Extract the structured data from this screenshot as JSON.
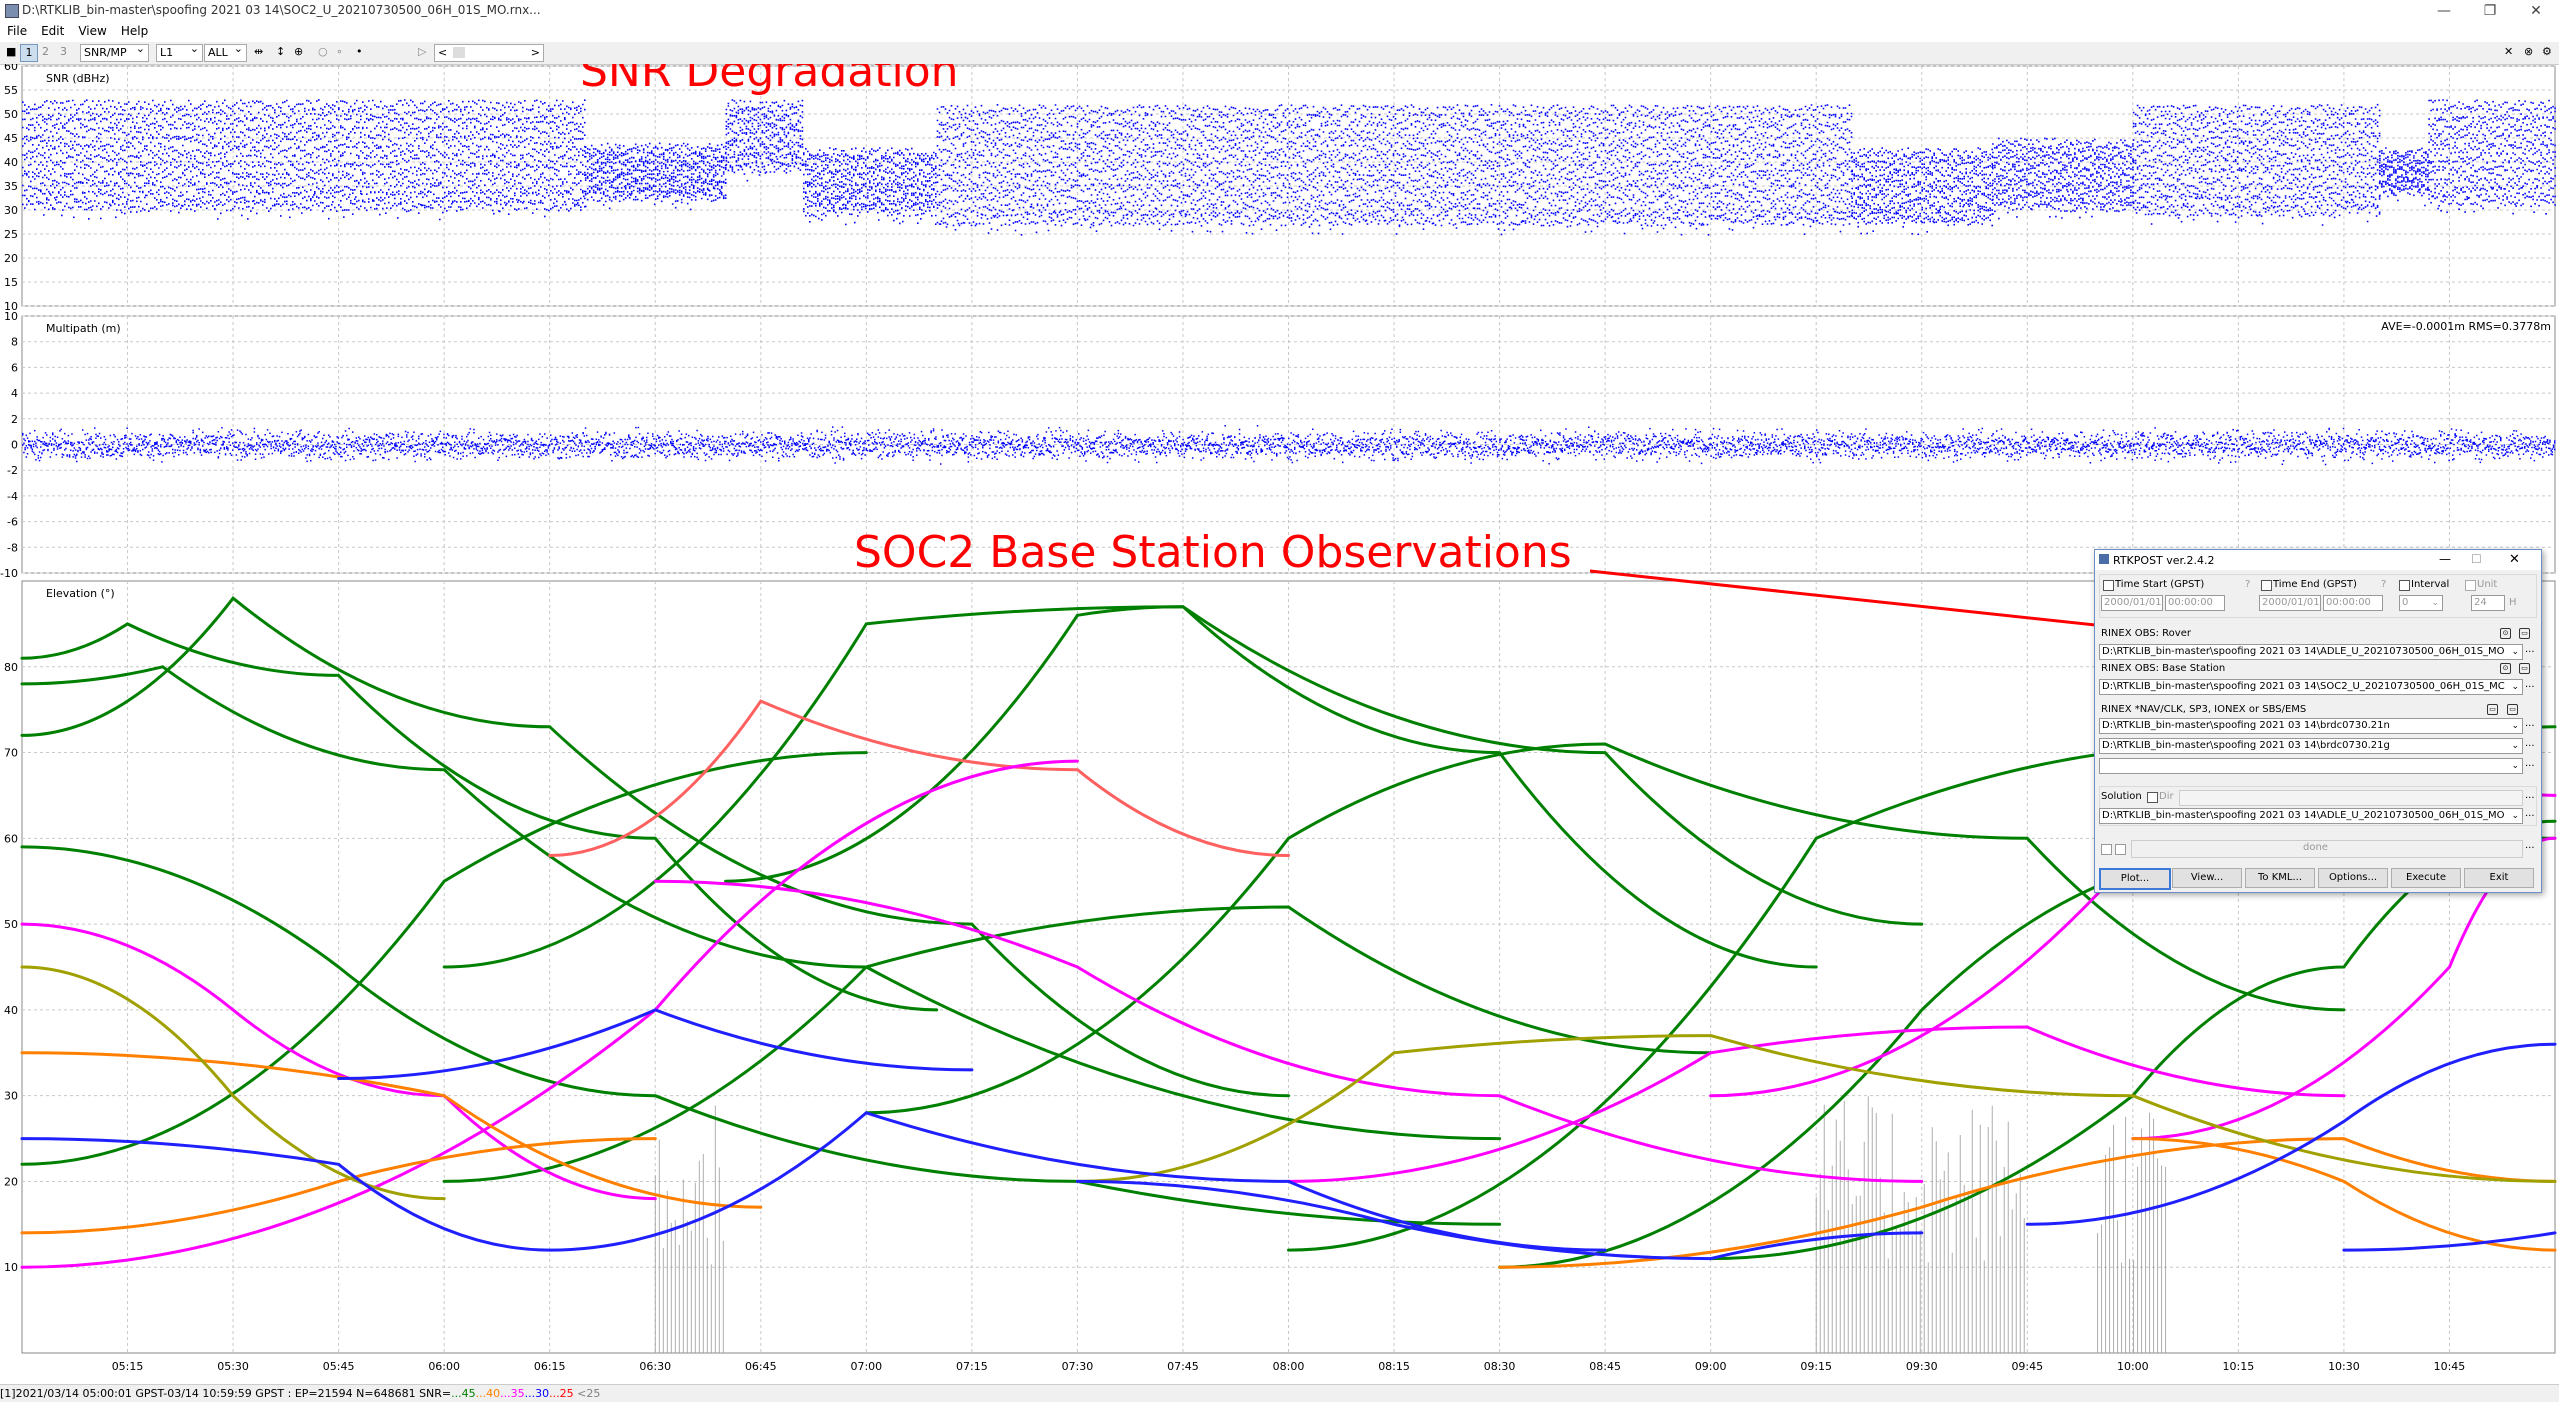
{
  "window": {
    "title": "D:\\RTKLIB_bin-master\\spoofing 2021 03 14\\SOC2_U_20210730500_06H_01S_MO.rnx...",
    "minimize": "—",
    "restore": "❐",
    "close": "✕"
  },
  "menu": [
    "File",
    "Edit",
    "View",
    "Help"
  ],
  "toolbar": {
    "frames": [
      "1",
      "2",
      "3"
    ],
    "plot_type": "SNR/MP",
    "freq": "L1",
    "sats": "ALL",
    "scroll_left": "<",
    "scroll_right": ">"
  },
  "annotations": {
    "snr": "SNR Degradation",
    "base": "SOC2 Base Station Observations"
  },
  "stats_text": "AVE=-0.0001m RMS=0.3778m",
  "status": {
    "left": "[1]2021/03/14 05:00:01 GPST-03/14 10:59:59 GPST : EP=21594 N=648681",
    "snr_prefix": "SNR=",
    "legend": [
      {
        "text": "...45",
        "color": "#008000"
      },
      {
        "text": "...40",
        "color": "#ff8000"
      },
      {
        "text": "...35",
        "color": "#ff00ff"
      },
      {
        "text": "...30",
        "color": "#0000ff"
      },
      {
        "text": "...25",
        "color": "#ff0000"
      },
      {
        "text": " <25",
        "color": "#808080"
      }
    ]
  },
  "chart_data": [
    {
      "type": "scatter",
      "ylabel": "SNR (dBHz)",
      "ylim": [
        10,
        60
      ],
      "yticks": [
        10,
        15,
        20,
        25,
        30,
        35,
        40,
        45,
        50,
        55,
        60
      ],
      "grid": true,
      "color": "#0000ff",
      "band_segments": [
        {
          "x": [
            "05:00",
            "06:20"
          ],
          "y": [
            28,
            52
          ]
        },
        {
          "x": [
            "06:20",
            "06:40"
          ],
          "y": [
            30,
            43
          ]
        },
        {
          "x": [
            "06:40",
            "06:51"
          ],
          "y": [
            36,
            52
          ]
        },
        {
          "x": [
            "06:51",
            "07:10"
          ],
          "y": [
            27,
            42
          ]
        },
        {
          "x": [
            "07:10",
            "09:20"
          ],
          "y": [
            25,
            51
          ]
        },
        {
          "x": [
            "09:20",
            "09:40"
          ],
          "y": [
            25,
            42
          ]
        },
        {
          "x": [
            "09:40",
            "10:00"
          ],
          "y": [
            28,
            44
          ]
        },
        {
          "x": [
            "10:00",
            "10:35"
          ],
          "y": [
            27,
            51
          ]
        },
        {
          "x": [
            "10:35",
            "10:42"
          ],
          "y": [
            31,
            42
          ]
        },
        {
          "x": [
            "10:42",
            "11:00"
          ],
          "y": [
            29,
            52
          ]
        }
      ]
    },
    {
      "type": "scatter",
      "ylabel": "Multipath (m)",
      "ylim": [
        -10,
        10
      ],
      "yticks": [
        -10,
        -8,
        -6,
        -4,
        -2,
        0,
        2,
        4,
        6,
        8,
        10
      ],
      "grid": true,
      "color": "#0000ff",
      "band": {
        "x": [
          "05:00",
          "11:00"
        ],
        "y": [
          -2,
          2
        ]
      }
    },
    {
      "type": "line",
      "ylabel": "Elevation (°)",
      "ylim": [
        0,
        90
      ],
      "yticks": [
        10,
        20,
        30,
        40,
        50,
        60,
        70,
        80
      ],
      "xticks": [
        "05:15",
        "05:30",
        "05:45",
        "06:00",
        "06:15",
        "06:30",
        "06:45",
        "07:00",
        "07:15",
        "07:30",
        "07:45",
        "08:00",
        "08:15",
        "08:30",
        "08:45",
        "09:00",
        "09:15",
        "09:30",
        "09:45",
        "10:00",
        "10:15",
        "10:30",
        "10:45"
      ],
      "xlim": [
        "05:00",
        "11:00"
      ],
      "grid": true,
      "series": [
        {
          "color": "#008000",
          "x": [
            "05:00",
            "05:15",
            "05:45",
            "06:30",
            "07:10"
          ],
          "y": [
            81,
            85,
            79,
            60,
            40
          ]
        },
        {
          "color": "#008000",
          "x": [
            "05:00",
            "05:30",
            "06:15",
            "07:15",
            "08:00"
          ],
          "y": [
            72,
            88,
            73,
            50,
            30
          ]
        },
        {
          "color": "#008000",
          "x": [
            "05:00",
            "05:20",
            "06:00",
            "07:00",
            "08:30"
          ],
          "y": [
            78,
            80,
            68,
            45,
            25
          ]
        },
        {
          "color": "#008000",
          "x": [
            "06:40",
            "07:30",
            "07:45",
            "08:30",
            "09:15"
          ],
          "y": [
            55,
            86,
            87,
            70,
            45
          ]
        },
        {
          "color": "#008000",
          "x": [
            "06:00",
            "07:00",
            "07:45",
            "08:45",
            "09:30"
          ],
          "y": [
            45,
            85,
            87,
            70,
            50
          ]
        },
        {
          "color": "#008000",
          "x": [
            "05:00",
            "05:45",
            "06:30",
            "07:30",
            "08:30"
          ],
          "y": [
            59,
            45,
            30,
            20,
            15
          ]
        },
        {
          "color": "#008000",
          "x": [
            "07:00",
            "08:00",
            "08:45",
            "09:45",
            "10:30"
          ],
          "y": [
            28,
            60,
            71,
            60,
            40
          ]
        },
        {
          "color": "#008000",
          "x": [
            "08:00",
            "09:15",
            "10:15",
            "11:00"
          ],
          "y": [
            12,
            60,
            71,
            60
          ]
        },
        {
          "color": "#008000",
          "x": [
            "08:30",
            "09:30",
            "10:15",
            "11:00"
          ],
          "y": [
            10,
            40,
            58,
            73
          ]
        },
        {
          "color": "#008000",
          "x": [
            "09:00",
            "10:00",
            "10:30",
            "11:00"
          ],
          "y": [
            11,
            30,
            45,
            62
          ]
        },
        {
          "color": "#008000",
          "x": [
            "05:00",
            "06:00",
            "07:00"
          ],
          "y": [
            22,
            55,
            70
          ]
        },
        {
          "color": "#008000",
          "x": [
            "06:00",
            "07:00",
            "08:00",
            "09:00"
          ],
          "y": [
            20,
            45,
            52,
            35
          ]
        },
        {
          "color": "#ff6060",
          "x": [
            "06:15",
            "06:45",
            "07:30",
            "08:00"
          ],
          "y": [
            58,
            76,
            68,
            58
          ]
        },
        {
          "color": "#ff00ff",
          "x": [
            "05:00",
            "05:30",
            "06:00",
            "06:30"
          ],
          "y": [
            50,
            40,
            30,
            18
          ]
        },
        {
          "color": "#ff00ff",
          "x": [
            "05:00",
            "06:30",
            "07:30"
          ],
          "y": [
            10,
            40,
            69
          ]
        },
        {
          "color": "#ff00ff",
          "x": [
            "06:30",
            "07:30",
            "08:30",
            "09:30"
          ],
          "y": [
            55,
            45,
            30,
            20
          ]
        },
        {
          "color": "#ff00ff",
          "x": [
            "08:00",
            "09:00",
            "09:45",
            "10:30"
          ],
          "y": [
            20,
            35,
            38,
            30
          ]
        },
        {
          "color": "#ff00ff",
          "x": [
            "09:00",
            "10:00",
            "10:45",
            "11:00"
          ],
          "y": [
            30,
            58,
            68,
            65
          ]
        },
        {
          "color": "#ff00ff",
          "x": [
            "10:00",
            "10:45",
            "11:00"
          ],
          "y": [
            25,
            45,
            60
          ]
        },
        {
          "color": "#ff8000",
          "x": [
            "05:00",
            "05:45",
            "06:30"
          ],
          "y": [
            14,
            20,
            25
          ]
        },
        {
          "color": "#ff8000",
          "x": [
            "05:00",
            "06:00",
            "06:45"
          ],
          "y": [
            35,
            30,
            17
          ]
        },
        {
          "color": "#ff8000",
          "x": [
            "08:30",
            "09:30",
            "10:30",
            "11:00"
          ],
          "y": [
            10,
            17,
            25,
            20
          ]
        },
        {
          "color": "#ff8000",
          "x": [
            "10:00",
            "10:30",
            "11:00"
          ],
          "y": [
            25,
            20,
            12
          ]
        },
        {
          "color": "#a0a000",
          "x": [
            "05:00",
            "05:30",
            "06:00"
          ],
          "y": [
            45,
            30,
            18
          ]
        },
        {
          "color": "#a0a000",
          "x": [
            "07:30",
            "08:15",
            "09:00",
            "10:00",
            "11:00"
          ],
          "y": [
            20,
            35,
            37,
            30,
            20
          ]
        },
        {
          "color": "#2020ff",
          "x": [
            "05:00",
            "05:45",
            "06:15"
          ],
          "y": [
            25,
            22,
            12
          ]
        },
        {
          "color": "#2020ff",
          "x": [
            "06:15",
            "07:00",
            "08:00",
            "08:45"
          ],
          "y": [
            12,
            28,
            20,
            12
          ]
        },
        {
          "color": "#2020ff",
          "x": [
            "07:30",
            "08:15",
            "09:00",
            "09:30"
          ],
          "y": [
            20,
            15,
            11,
            14
          ]
        },
        {
          "color": "#2020ff",
          "x": [
            "09:45",
            "10:30",
            "11:00"
          ],
          "y": [
            15,
            27,
            36
          ]
        },
        {
          "color": "#2020ff",
          "x": [
            "05:45",
            "06:30",
            "07:15"
          ],
          "y": [
            32,
            40,
            33
          ]
        },
        {
          "color": "#2020ff",
          "x": [
            "10:30",
            "11:00"
          ],
          "y": [
            12,
            14
          ]
        }
      ],
      "gray_spikes": {
        "x_ranges": [
          [
            "06:30",
            "06:40"
          ],
          [
            "09:15",
            "09:45"
          ],
          [
            "09:55",
            "10:05"
          ]
        ],
        "ymax": 30
      }
    }
  ],
  "rtkpost": {
    "title": "RTKPOST ver.2.4.2",
    "min": "—",
    "max": "☐",
    "close": "✕",
    "time_start": "Time Start (GPST)",
    "time_end": "Time End (GPST)",
    "interval": "Interval",
    "unit": "Unit",
    "q": "?",
    "date1": "2000/01/01",
    "time1": "00:00:00",
    "date2": "2000/01/01",
    "time2": "00:00:00",
    "interval_val": "0",
    "unit_val": "24",
    "unit_suffix": "H",
    "rover_label": "RINEX OBS: Rover",
    "rover_path": "D:\\RTKLIB_bin-master\\spoofing 2021 03 14\\ADLE_U_20210730500_06H_01S_MO",
    "base_label": "RINEX OBS: Base Station",
    "base_path": "D:\\RTKLIB_bin-master\\spoofing 2021 03 14\\SOC2_U_20210730500_06H_01S_MC",
    "nav_label": "RINEX *NAV/CLK, SP3, IONEX or SBS/EMS",
    "nav1": "D:\\RTKLIB_bin-master\\spoofing 2021 03 14\\brdc0730.21n",
    "nav2": "D:\\RTKLIB_bin-master\\spoofing 2021 03 14\\brdc0730.21g",
    "solution_label": "Solution",
    "dir_label": "Dir",
    "solution_path": "D:\\RTKLIB_bin-master\\spoofing 2021 03 14\\ADLE_U_20210730500_06H_01S_MO",
    "status": "done",
    "buttons": [
      "Plot...",
      "View...",
      "To KML...",
      "Options...",
      "Execute",
      "Exit"
    ],
    "browse": "..."
  }
}
